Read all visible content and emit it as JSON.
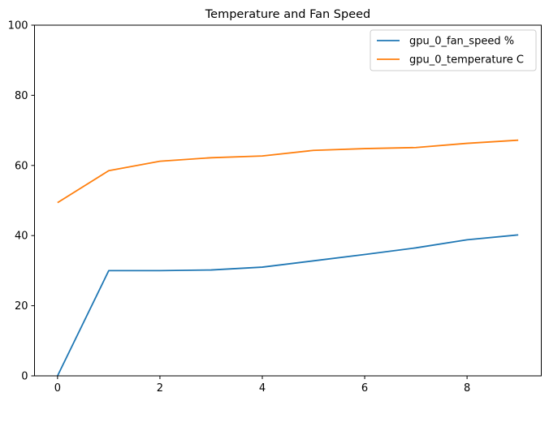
{
  "chart_data": {
    "type": "line",
    "title": "Temperature and Fan Speed",
    "xlabel": "",
    "ylabel": "",
    "xlim": [
      -0.45,
      9.45
    ],
    "ylim": [
      0,
      100
    ],
    "xticks": [
      0,
      2,
      4,
      6,
      8
    ],
    "yticks": [
      0,
      20,
      40,
      60,
      80,
      100
    ],
    "grid": false,
    "legend_position": "top-right",
    "x": [
      0,
      1,
      2,
      3,
      4,
      5,
      6,
      7,
      8,
      9
    ],
    "series": [
      {
        "name": "gpu_0_fan_speed %",
        "color": "#1f77b4",
        "values": [
          0,
          30,
          30,
          30.2,
          31,
          32.8,
          34.6,
          36.5,
          38.8,
          40.2
        ]
      },
      {
        "name": "gpu_0_temperature C",
        "color": "#ff7f0e",
        "values": [
          49.4,
          58.5,
          61.2,
          62.2,
          62.7,
          64.3,
          64.8,
          65.1,
          66.3,
          67.2
        ]
      }
    ]
  }
}
